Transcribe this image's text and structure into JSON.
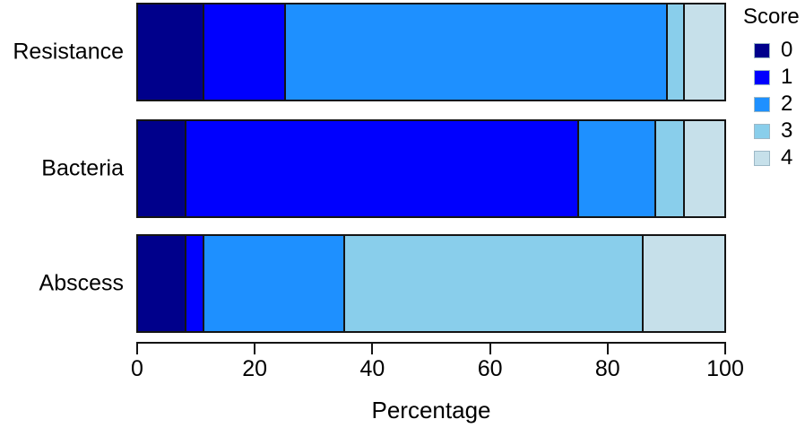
{
  "chart_data": {
    "type": "bar",
    "orientation": "horizontal-stacked",
    "title": "",
    "xlabel": "Percentage",
    "ylabel": "",
    "xlim": [
      0,
      100
    ],
    "x_ticks": [
      0,
      20,
      40,
      60,
      80,
      100
    ],
    "grid": "off",
    "categories": [
      "Resistance",
      "Bacteria",
      "Abscess"
    ],
    "series": [
      {
        "name": "0",
        "color": "#00008B",
        "values": [
          11,
          8,
          8
        ]
      },
      {
        "name": "1",
        "color": "#0000FE",
        "values": [
          14,
          67,
          3
        ]
      },
      {
        "name": "2",
        "color": "#1E90FF",
        "values": [
          65,
          13,
          24
        ]
      },
      {
        "name": "3",
        "color": "#89CEEB",
        "values": [
          3,
          5,
          51
        ]
      },
      {
        "name": "4",
        "color": "#C6E0EA",
        "values": [
          7,
          7,
          14
        ]
      }
    ],
    "legend": {
      "title": "Score",
      "position": "top-right",
      "entries": [
        "0",
        "1",
        "2",
        "3",
        "4"
      ]
    }
  }
}
